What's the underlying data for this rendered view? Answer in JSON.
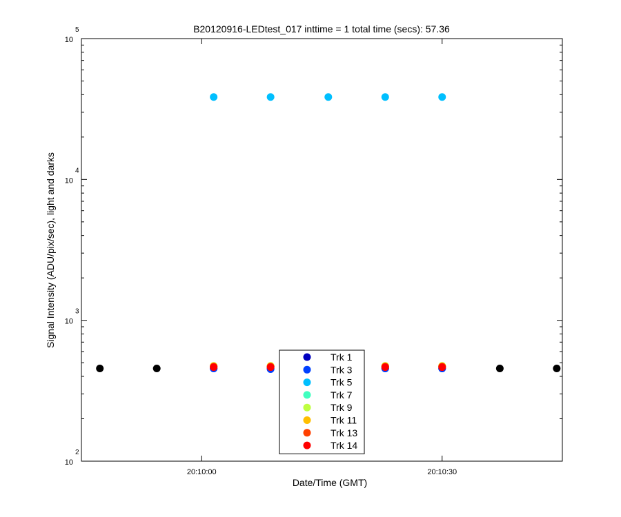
{
  "chart_data": {
    "type": "scatter",
    "title": "B20120916-LEDtest_017 inttime = 1 total time (secs): 57.36",
    "xlabel": "Date/Time (GMT)",
    "ylabel": "Signal Intensity (ADU/pix/sec), light and darks",
    "yscale": "log",
    "ylim": [
      100,
      100000
    ],
    "xlim": [
      "20:09:45",
      "20:10:45"
    ],
    "x_ticks": [
      "20:10:00",
      "20:10:30"
    ],
    "y_ticks": [
      {
        "base": "10",
        "exp": "2"
      },
      {
        "base": "10",
        "exp": "3"
      },
      {
        "base": "10",
        "exp": "4"
      },
      {
        "base": "10",
        "exp": "5"
      }
    ],
    "grid": false,
    "legend_position": "bottom-center",
    "light_times": [
      "20:10:01.5",
      "20:10:08.6",
      "20:10:15.8",
      "20:10:22.9",
      "20:10:30.0"
    ],
    "series": [
      {
        "name": "Trk 1",
        "color": "#0000bf",
        "values": [
          455,
          455,
          455,
          455,
          455
        ]
      },
      {
        "name": "Trk 3",
        "color": "#0040ff",
        "values": [
          455,
          450,
          455,
          455,
          455
        ]
      },
      {
        "name": "Trk 5",
        "color": "#00bfff",
        "values": [
          38500,
          38500,
          38500,
          38500,
          38500
        ]
      },
      {
        "name": "Trk 7",
        "color": "#40ffbf",
        "values": [
          470,
          470,
          470,
          470,
          470
        ]
      },
      {
        "name": "Trk 9",
        "color": "#bfff40",
        "values": [
          475,
          475,
          475,
          475,
          475
        ]
      },
      {
        "name": "Trk 11",
        "color": "#ffbf00",
        "values": [
          472,
          472,
          472,
          472,
          472
        ]
      },
      {
        "name": "Trk 13",
        "color": "#ff4000",
        "values": [
          468,
          468,
          468,
          468,
          468
        ]
      },
      {
        "name": "Trk 14",
        "color": "#ff0000",
        "values": [
          465,
          465,
          465,
          465,
          465
        ]
      }
    ],
    "darks": {
      "color": "#000000",
      "x": [
        "20:09:47.3",
        "20:09:54.4",
        "20:10:37.2",
        "20:10:44.3"
      ],
      "values": [
        455,
        455,
        455,
        455
      ]
    }
  }
}
